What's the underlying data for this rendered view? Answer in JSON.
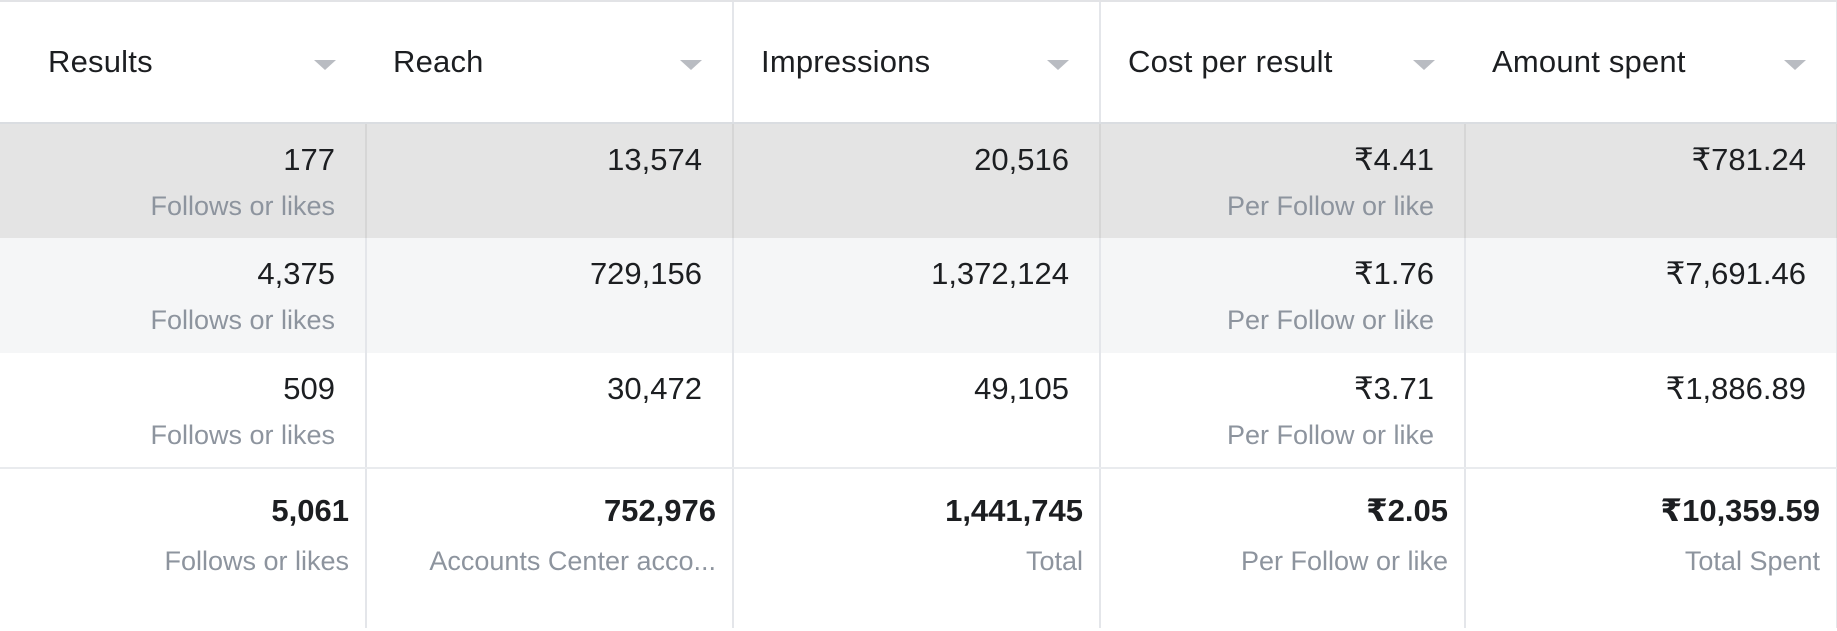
{
  "columns": [
    {
      "label": "Results"
    },
    {
      "label": "Reach"
    },
    {
      "label": "Impressions"
    },
    {
      "label": "Cost per result"
    },
    {
      "label": "Amount spent"
    }
  ],
  "rows": [
    {
      "results": {
        "value": "177",
        "sub": "Follows or likes"
      },
      "reach": {
        "value": "13,574"
      },
      "impressions": {
        "value": "20,516"
      },
      "cost_per_result": {
        "value": "₹4.41",
        "sub": "Per Follow or like"
      },
      "amount_spent": {
        "value": "₹781.24"
      }
    },
    {
      "results": {
        "value": "4,375",
        "sub": "Follows or likes"
      },
      "reach": {
        "value": "729,156"
      },
      "impressions": {
        "value": "1,372,124"
      },
      "cost_per_result": {
        "value": "₹1.76",
        "sub": "Per Follow or like"
      },
      "amount_spent": {
        "value": "₹7,691.46"
      }
    },
    {
      "results": {
        "value": "509",
        "sub": "Follows or likes"
      },
      "reach": {
        "value": "30,472"
      },
      "impressions": {
        "value": "49,105"
      },
      "cost_per_result": {
        "value": "₹3.71",
        "sub": "Per Follow or like"
      },
      "amount_spent": {
        "value": "₹1,886.89"
      }
    }
  ],
  "totals": {
    "results": {
      "value": "5,061",
      "sub": "Follows or likes"
    },
    "reach": {
      "value": "752,976",
      "sub": "Accounts Center acco..."
    },
    "impressions": {
      "value": "1,441,745",
      "sub": "Total"
    },
    "cost_per_result": {
      "value": "₹2.05",
      "sub": "Per Follow or like"
    },
    "amount_spent": {
      "value": "₹10,359.59",
      "sub": "Total Spent"
    }
  },
  "icons": {
    "sort": "chevron-down-icon"
  }
}
